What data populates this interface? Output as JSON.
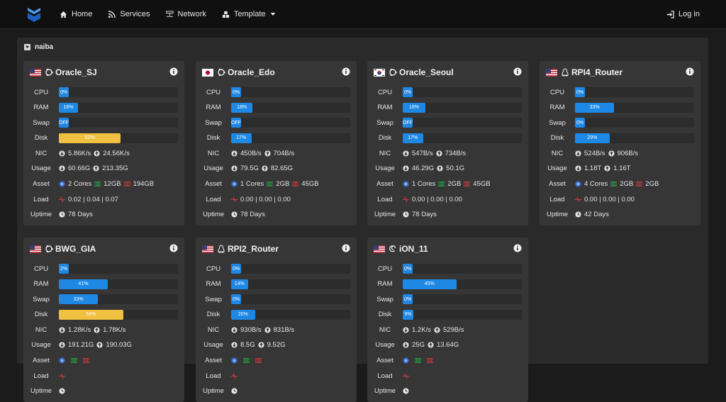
{
  "nav": {
    "home": "Home",
    "services": "Services",
    "network": "Network",
    "template": "Template",
    "login": "Log in"
  },
  "group": {
    "name": "naiba"
  },
  "labels": {
    "cpu": "CPU",
    "ram": "RAM",
    "swap": "Swap",
    "disk": "Disk",
    "nic": "NIC",
    "usage": "Usage",
    "asset": "Asset",
    "load": "Load",
    "uptime": "Uptime"
  },
  "colors": {
    "accent": "#1e88e5",
    "warn": "#f0c040"
  },
  "servers": [
    {
      "name": "Oracle_SJ",
      "flag": "us",
      "os": "ubuntu-icon",
      "cpu": {
        "percent": 0,
        "label": "0%"
      },
      "ram": {
        "percent": 16,
        "label": "16%"
      },
      "swap": {
        "percent": 0,
        "label": "OFF"
      },
      "disk": {
        "percent": 52,
        "label": "52%",
        "warn": true
      },
      "nic_down": "5.86K/s",
      "nic_up": "24.56K/s",
      "usage_down": "60.66G",
      "usage_up": "213.35G",
      "cores": "2 Cores",
      "mem": "12GB",
      "storage": "194GB",
      "load": "0.02 | 0.04 | 0.07",
      "uptime": "78 Days"
    },
    {
      "name": "Oracle_Edo",
      "flag": "jp",
      "os": "ubuntu-icon",
      "cpu": {
        "percent": 0,
        "label": "0%"
      },
      "ram": {
        "percent": 18,
        "label": "18%"
      },
      "swap": {
        "percent": 0,
        "label": "OFF"
      },
      "disk": {
        "percent": 17,
        "label": "17%",
        "warn": false
      },
      "nic_down": "450B/s",
      "nic_up": "704B/s",
      "usage_down": "79.5G",
      "usage_up": "82.65G",
      "cores": "1 Cores",
      "mem": "2GB",
      "storage": "45GB",
      "load": "0.00 | 0.00 | 0.00",
      "uptime": "78 Days"
    },
    {
      "name": "Oracle_Seoul",
      "flag": "kr",
      "os": "ubuntu-icon",
      "cpu": {
        "percent": 0,
        "label": "0%"
      },
      "ram": {
        "percent": 19,
        "label": "19%"
      },
      "swap": {
        "percent": 0,
        "label": "OFF"
      },
      "disk": {
        "percent": 17,
        "label": "17%",
        "warn": false
      },
      "nic_down": "547B/s",
      "nic_up": "734B/s",
      "usage_down": "46.29G",
      "usage_up": "50.1G",
      "cores": "1 Cores",
      "mem": "2GB",
      "storage": "45GB",
      "load": "0.00 | 0.00 | 0.00",
      "uptime": "78 Days"
    },
    {
      "name": "RPI4_Router",
      "flag": "us",
      "os": "linux-icon",
      "cpu": {
        "percent": 0,
        "label": "0%"
      },
      "ram": {
        "percent": 33,
        "label": "33%"
      },
      "swap": {
        "percent": 0,
        "label": "0%"
      },
      "disk": {
        "percent": 29,
        "label": "29%",
        "warn": false
      },
      "nic_down": "524B/s",
      "nic_up": "906B/s",
      "usage_down": "1.18T",
      "usage_up": "1.16T",
      "cores": "4 Cores",
      "mem": "2GB",
      "storage": "2GB",
      "load": "0.00 | 0.00 | 0.00",
      "uptime": "42 Days"
    },
    {
      "name": "BWG_GIA",
      "flag": "us",
      "os": "ubuntu-icon",
      "cpu": {
        "percent": 2,
        "label": "2%"
      },
      "ram": {
        "percent": 41,
        "label": "41%"
      },
      "swap": {
        "percent": 33,
        "label": "33%"
      },
      "disk": {
        "percent": 54,
        "label": "54%",
        "warn": true
      },
      "nic_down": "1.28K/s",
      "nic_up": "1.78K/s",
      "usage_down": "191.21G",
      "usage_up": "190.03G",
      "cores": "",
      "mem": "",
      "storage": "",
      "load": "",
      "uptime": ""
    },
    {
      "name": "RPI2_Router",
      "flag": "us",
      "os": "linux-icon",
      "cpu": {
        "percent": 0,
        "label": "0%"
      },
      "ram": {
        "percent": 14,
        "label": "14%"
      },
      "swap": {
        "percent": 0,
        "label": "0%"
      },
      "disk": {
        "percent": 20,
        "label": "20%",
        "warn": false
      },
      "nic_down": "930B/s",
      "nic_up": "831B/s",
      "usage_down": "8.5G",
      "usage_up": "9.52G",
      "cores": "",
      "mem": "",
      "storage": "",
      "load": "",
      "uptime": ""
    },
    {
      "name": "iON_11",
      "flag": "us",
      "os": "debian-icon",
      "cpu": {
        "percent": 0,
        "label": "0%"
      },
      "ram": {
        "percent": 45,
        "label": "45%"
      },
      "swap": {
        "percent": 0,
        "label": "0%"
      },
      "disk": {
        "percent": 9,
        "label": "9%",
        "warn": false
      },
      "nic_down": "1.2K/s",
      "nic_up": "529B/s",
      "usage_down": "25G",
      "usage_up": "13.64G",
      "cores": "",
      "mem": "",
      "storage": "",
      "load": "",
      "uptime": ""
    }
  ]
}
